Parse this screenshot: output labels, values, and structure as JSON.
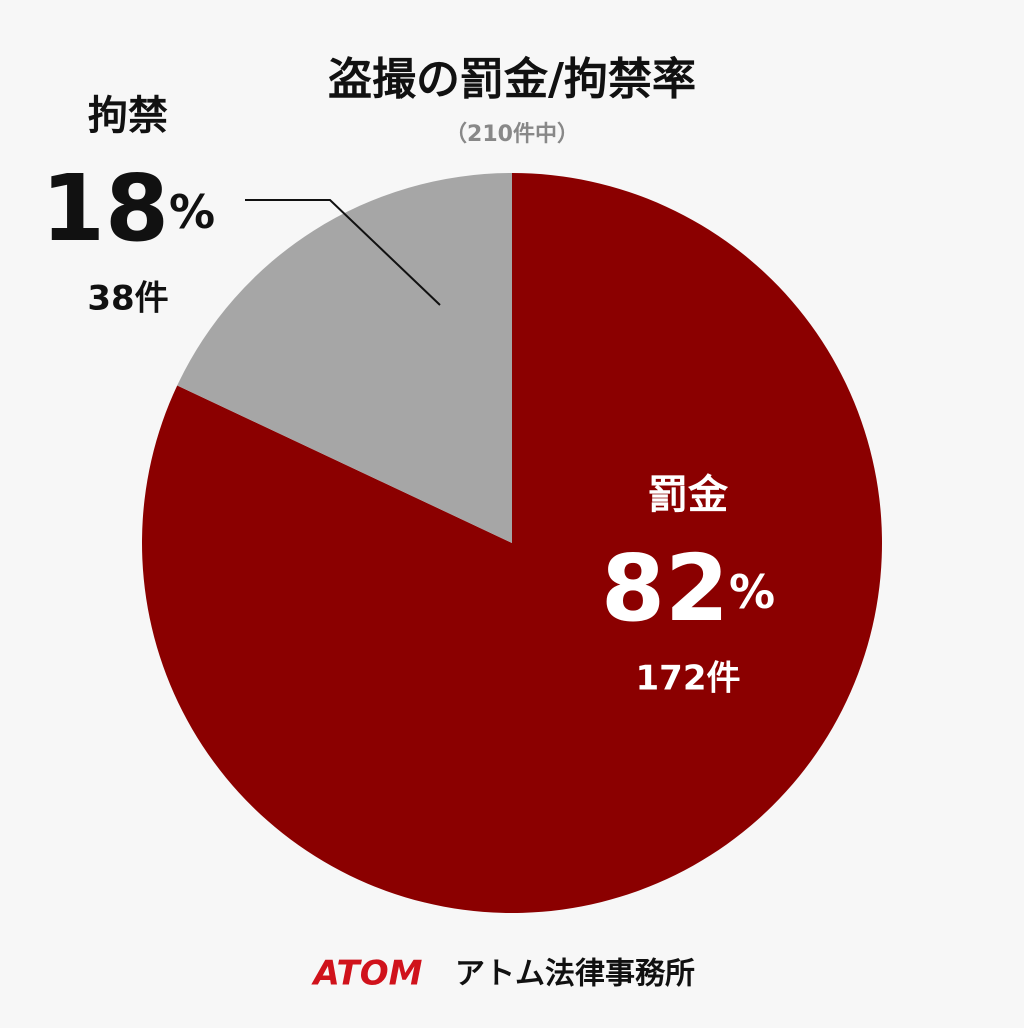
{
  "chart_data": {
    "type": "pie",
    "title": "盗撮の罰金/拘禁率",
    "subtitle": "（210件中）",
    "categories": [
      "罰金",
      "拘禁"
    ],
    "values": [
      82,
      18
    ],
    "unit": "%",
    "count_labels": [
      "172件",
      "38件"
    ],
    "colors": [
      "#8b0000",
      "#a6a6a6"
    ]
  },
  "footer": {
    "brand": "ATOM",
    "name": "アトム法律事務所"
  }
}
